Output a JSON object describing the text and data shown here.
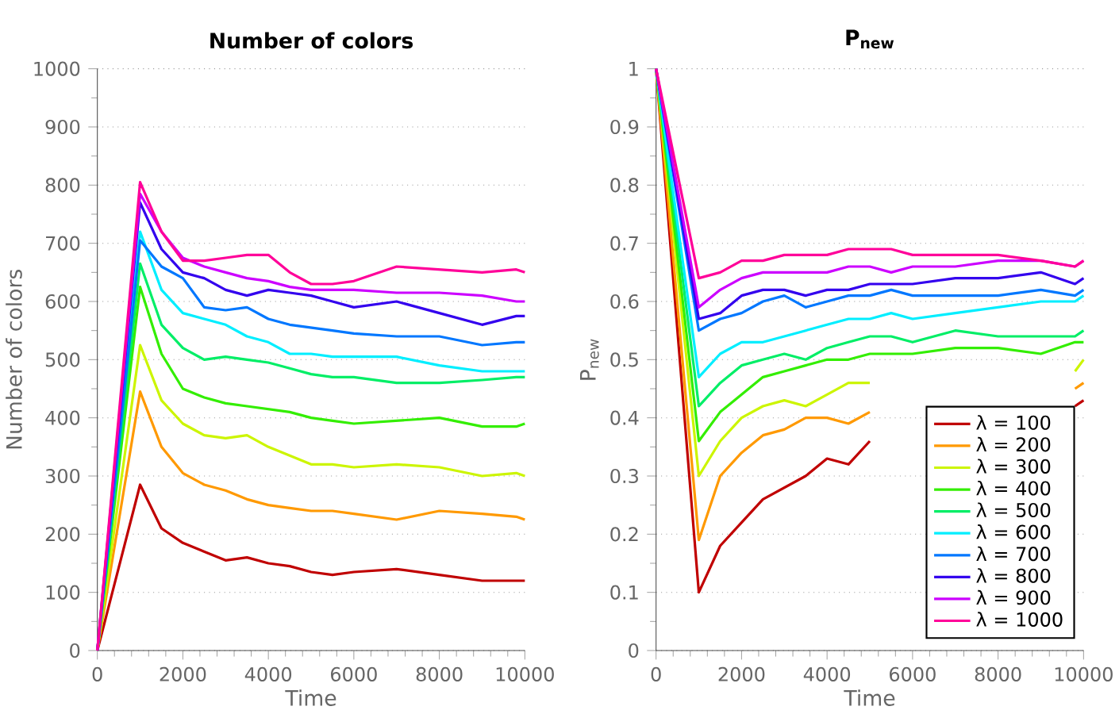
{
  "chart_data": [
    {
      "type": "line",
      "title": "Number of colors",
      "xlabel": "Time",
      "ylabel": "Number of colors",
      "x": [
        0,
        1000,
        1500,
        2000,
        2500,
        3000,
        3500,
        4000,
        4500,
        5000,
        5500,
        6000,
        7000,
        8000,
        9000,
        9800,
        10000
      ],
      "xlim": [
        0,
        10000
      ],
      "xticks": [
        0,
        2000,
        4000,
        6000,
        8000,
        10000
      ],
      "ylim": [
        0,
        1000
      ],
      "yticks": [
        0,
        100,
        200,
        300,
        400,
        500,
        600,
        700,
        800,
        900,
        1000
      ],
      "grid": "y",
      "legend": false,
      "marker": "none",
      "line_style": "solid",
      "series": [
        {
          "color": "#c00000",
          "values": [
            0,
            285,
            210,
            185,
            170,
            155,
            160,
            150,
            145,
            135,
            130,
            135,
            140,
            130,
            120,
            120,
            120
          ]
        },
        {
          "color": "#ff9900",
          "values": [
            0,
            445,
            350,
            305,
            285,
            275,
            260,
            250,
            245,
            240,
            240,
            235,
            225,
            240,
            235,
            230,
            225
          ]
        },
        {
          "color": "#ccf500",
          "values": [
            0,
            525,
            430,
            390,
            370,
            365,
            370,
            350,
            335,
            320,
            320,
            315,
            320,
            315,
            300,
            305,
            300
          ]
        },
        {
          "color": "#33ee00",
          "values": [
            0,
            625,
            510,
            450,
            435,
            425,
            420,
            415,
            410,
            400,
            395,
            390,
            395,
            400,
            385,
            385,
            390
          ]
        },
        {
          "color": "#00ee66",
          "values": [
            0,
            665,
            560,
            520,
            500,
            505,
            500,
            495,
            485,
            475,
            470,
            470,
            460,
            460,
            465,
            470,
            470
          ]
        },
        {
          "color": "#00eeff",
          "values": [
            0,
            720,
            620,
            580,
            570,
            560,
            540,
            530,
            510,
            510,
            505,
            505,
            505,
            490,
            480,
            480,
            480
          ]
        },
        {
          "color": "#0077ff",
          "values": [
            0,
            705,
            660,
            640,
            590,
            585,
            590,
            570,
            560,
            555,
            550,
            545,
            540,
            540,
            525,
            530,
            530
          ]
        },
        {
          "color": "#3300ee",
          "values": [
            0,
            770,
            690,
            650,
            640,
            620,
            610,
            620,
            615,
            610,
            600,
            590,
            600,
            580,
            560,
            575,
            575
          ]
        },
        {
          "color": "#cc00ff",
          "values": [
            0,
            785,
            720,
            675,
            660,
            650,
            640,
            635,
            625,
            620,
            620,
            620,
            615,
            615,
            610,
            600,
            600
          ]
        },
        {
          "color": "#ff0099",
          "values": [
            0,
            805,
            720,
            670,
            670,
            675,
            680,
            680,
            650,
            630,
            630,
            635,
            660,
            655,
            650,
            655,
            650
          ]
        }
      ]
    },
    {
      "type": "line",
      "title": "P$_{new}$",
      "xlabel": "Time",
      "ylabel": "P$_{new}$",
      "x": [
        0,
        1000,
        1500,
        2000,
        2500,
        3000,
        3500,
        4000,
        4500,
        5000,
        5500,
        6000,
        7000,
        8000,
        9000,
        9800,
        10000
      ],
      "xlim": [
        0,
        10000
      ],
      "xticks": [
        0,
        2000,
        4000,
        6000,
        8000,
        10000
      ],
      "ylim": [
        0,
        1
      ],
      "yticks": [
        0,
        0.1,
        0.2,
        0.3,
        0.4,
        0.5,
        0.6,
        0.7,
        0.8,
        0.9,
        1
      ],
      "grid": "y",
      "legend": "bottom right",
      "marker": "none",
      "line_style": "solid",
      "series": [
        {
          "name": "λ = 100",
          "color": "#c00000",
          "values": [
            1,
            0.1,
            0.18,
            0.22,
            0.26,
            0.28,
            0.3,
            0.33,
            0.32,
            0.36,
            null,
            null,
            null,
            null,
            null,
            0.42,
            0.43
          ]
        },
        {
          "name": "λ = 200",
          "color": "#ff9900",
          "values": [
            1,
            0.19,
            0.3,
            0.34,
            0.37,
            0.38,
            0.4,
            0.4,
            0.39,
            0.41,
            null,
            null,
            null,
            null,
            null,
            0.45,
            0.46
          ]
        },
        {
          "name": "λ = 300",
          "color": "#ccf500",
          "values": [
            1,
            0.3,
            0.36,
            0.4,
            0.42,
            0.43,
            0.42,
            0.44,
            0.46,
            0.46,
            null,
            null,
            null,
            null,
            null,
            0.48,
            0.5
          ]
        },
        {
          "name": "λ = 400",
          "color": "#33ee00",
          "values": [
            1,
            0.36,
            0.41,
            0.44,
            0.47,
            0.48,
            0.49,
            0.5,
            0.5,
            0.51,
            0.51,
            0.51,
            0.52,
            0.52,
            0.51,
            0.53,
            0.53
          ]
        },
        {
          "name": "λ = 500",
          "color": "#00ee66",
          "values": [
            1,
            0.42,
            0.46,
            0.49,
            0.5,
            0.51,
            0.5,
            0.52,
            0.53,
            0.54,
            0.54,
            0.53,
            0.55,
            0.54,
            0.54,
            0.54,
            0.55
          ]
        },
        {
          "name": "λ = 600",
          "color": "#00eeff",
          "values": [
            1,
            0.47,
            0.51,
            0.53,
            0.53,
            0.54,
            0.55,
            0.56,
            0.57,
            0.57,
            0.58,
            0.57,
            0.58,
            0.59,
            0.6,
            0.6,
            0.61
          ]
        },
        {
          "name": "λ = 700",
          "color": "#0077ff",
          "values": [
            1,
            0.55,
            0.57,
            0.58,
            0.6,
            0.61,
            0.59,
            0.6,
            0.61,
            0.61,
            0.62,
            0.61,
            0.61,
            0.61,
            0.62,
            0.61,
            0.62
          ]
        },
        {
          "name": "λ = 800",
          "color": "#3300ee",
          "values": [
            1,
            0.57,
            0.58,
            0.61,
            0.62,
            0.62,
            0.61,
            0.62,
            0.62,
            0.63,
            0.63,
            0.63,
            0.64,
            0.64,
            0.65,
            0.63,
            0.64
          ]
        },
        {
          "name": "λ = 900",
          "color": "#cc00ff",
          "values": [
            1,
            0.59,
            0.62,
            0.64,
            0.65,
            0.65,
            0.65,
            0.65,
            0.66,
            0.66,
            0.65,
            0.66,
            0.66,
            0.67,
            0.67,
            0.66,
            0.67
          ]
        },
        {
          "name": "λ = 1000",
          "color": "#ff0099",
          "values": [
            1,
            0.64,
            0.65,
            0.67,
            0.67,
            0.68,
            0.68,
            0.68,
            0.69,
            0.69,
            0.69,
            0.68,
            0.68,
            0.68,
            0.67,
            0.66,
            0.67
          ]
        }
      ]
    }
  ]
}
